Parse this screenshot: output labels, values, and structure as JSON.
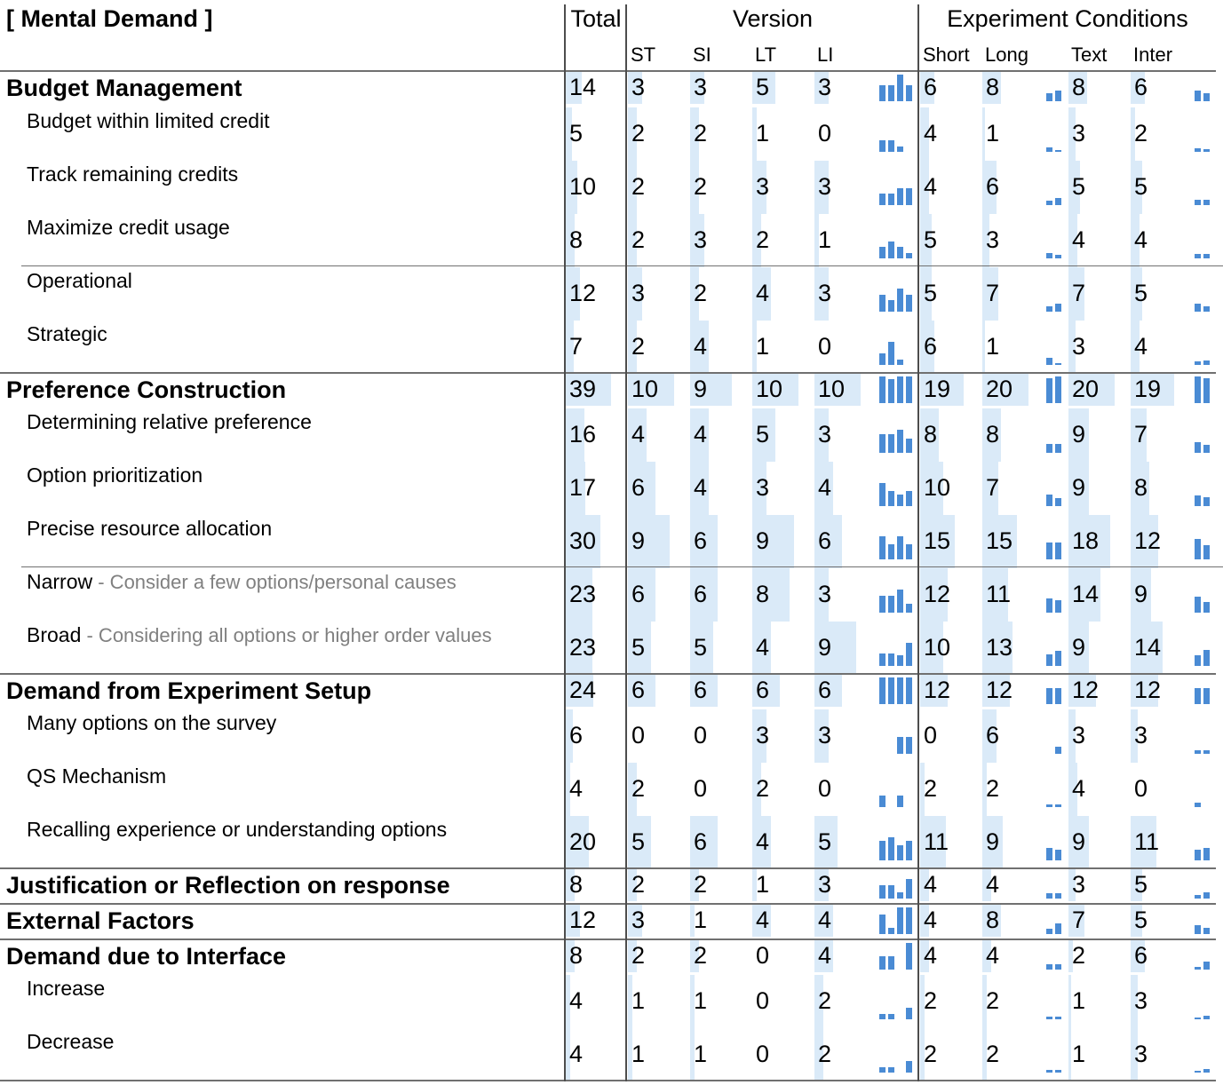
{
  "chart_data": {
    "type": "table",
    "title": "[ Mental Demand ]",
    "column_groups": {
      "total": "Total",
      "version": {
        "label": "Version",
        "columns": [
          "ST",
          "SI",
          "LT",
          "LI"
        ]
      },
      "conditions": {
        "label": "Experiment Conditions",
        "columns": [
          "Short",
          "Long",
          "Text",
          "Inter"
        ]
      }
    },
    "rows": [
      {
        "label": "Budget Management",
        "level": 0,
        "total": 14,
        "version": [
          3,
          3,
          5,
          3
        ],
        "conditions": [
          6,
          8,
          8,
          6
        ]
      },
      {
        "label": "Budget within limited credit",
        "level": 1,
        "total": 5,
        "version": [
          2,
          2,
          1,
          0
        ],
        "conditions": [
          4,
          1,
          3,
          2
        ]
      },
      {
        "label": "Track remaining credits",
        "level": 1,
        "total": 10,
        "version": [
          2,
          2,
          3,
          3
        ],
        "conditions": [
          4,
          6,
          5,
          5
        ]
      },
      {
        "label": "Maximize credit usage",
        "level": 1,
        "total": 8,
        "version": [
          2,
          3,
          2,
          1
        ],
        "conditions": [
          5,
          3,
          4,
          4
        ]
      },
      {
        "label": "Operational",
        "level": 1,
        "total": 12,
        "version": [
          3,
          2,
          4,
          3
        ],
        "conditions": [
          5,
          7,
          7,
          5
        ]
      },
      {
        "label": "Strategic",
        "level": 1,
        "total": 7,
        "version": [
          2,
          4,
          1,
          0
        ],
        "conditions": [
          6,
          1,
          3,
          4
        ]
      },
      {
        "label": "Preference Construction",
        "level": 0,
        "total": 39,
        "version": [
          10,
          9,
          10,
          10
        ],
        "conditions": [
          19,
          20,
          20,
          19
        ]
      },
      {
        "label": "Determining relative preference",
        "level": 1,
        "total": 16,
        "version": [
          4,
          4,
          5,
          3
        ],
        "conditions": [
          8,
          8,
          9,
          7
        ]
      },
      {
        "label": "Option prioritization",
        "level": 1,
        "total": 17,
        "version": [
          6,
          4,
          3,
          4
        ],
        "conditions": [
          10,
          7,
          9,
          8
        ]
      },
      {
        "label": "Precise resource allocation",
        "level": 1,
        "total": 30,
        "version": [
          9,
          6,
          9,
          6
        ],
        "conditions": [
          15,
          15,
          18,
          12
        ]
      },
      {
        "label": "Narrow",
        "description": "- Consider a few options/personal causes",
        "level": 1,
        "total": 23,
        "version": [
          6,
          6,
          8,
          3
        ],
        "conditions": [
          12,
          11,
          14,
          9
        ]
      },
      {
        "label": "Broad",
        "description": "- Considering all options or higher order values",
        "level": 1,
        "total": 23,
        "version": [
          5,
          5,
          4,
          9
        ],
        "conditions": [
          10,
          13,
          9,
          14
        ]
      },
      {
        "label": "Demand from Experiment Setup",
        "level": 0,
        "total": 24,
        "version": [
          6,
          6,
          6,
          6
        ],
        "conditions": [
          12,
          12,
          12,
          12
        ]
      },
      {
        "label": "Many options on the survey",
        "level": 1,
        "total": 6,
        "version": [
          0,
          0,
          3,
          3
        ],
        "conditions": [
          0,
          6,
          3,
          3
        ]
      },
      {
        "label": "QS Mechanism",
        "level": 1,
        "total": 4,
        "version": [
          2,
          0,
          2,
          0
        ],
        "conditions": [
          2,
          2,
          4,
          0
        ]
      },
      {
        "label": "Recalling experience or understanding options",
        "level": 1,
        "total": 20,
        "version": [
          5,
          6,
          4,
          5
        ],
        "conditions": [
          11,
          9,
          9,
          11
        ]
      },
      {
        "label": "Justification or Reflection on response",
        "level": 0,
        "total": 8,
        "version": [
          2,
          2,
          1,
          3
        ],
        "conditions": [
          4,
          4,
          3,
          5
        ]
      },
      {
        "label": "External Factors",
        "level": 0,
        "total": 12,
        "version": [
          3,
          1,
          4,
          4
        ],
        "conditions": [
          4,
          8,
          7,
          5
        ]
      },
      {
        "label": "Demand due to Interface",
        "level": 0,
        "total": 8,
        "version": [
          2,
          2,
          0,
          4
        ],
        "conditions": [
          4,
          4,
          2,
          6
        ]
      },
      {
        "label": "Increase",
        "level": 1,
        "total": 4,
        "version": [
          1,
          1,
          0,
          2
        ],
        "conditions": [
          2,
          2,
          1,
          3
        ]
      },
      {
        "label": "Decrease",
        "level": 1,
        "total": 4,
        "version": [
          1,
          1,
          0,
          2
        ],
        "conditions": [
          2,
          2,
          1,
          3
        ]
      }
    ],
    "colors": {
      "cell_fill": "#daeaf8",
      "sparkline_bar": "#4a8bd4",
      "description_text": "#808080"
    }
  }
}
